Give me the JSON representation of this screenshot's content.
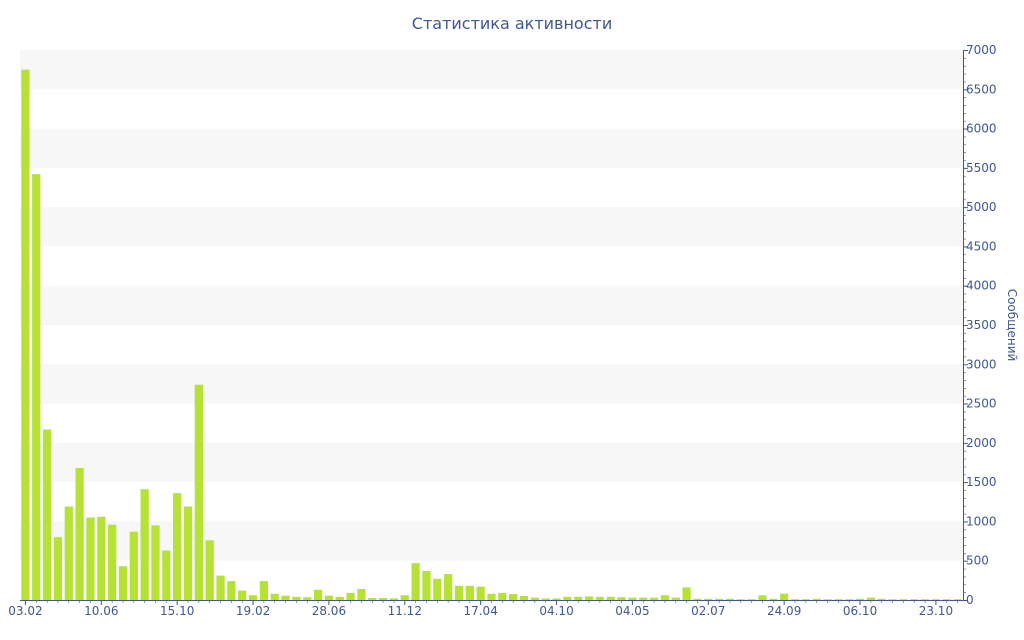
{
  "chart_data": {
    "type": "bar",
    "title": "Статистика активности",
    "ylabel": "Сообщений",
    "xlabel": "",
    "ylim": [
      0,
      7000
    ],
    "y_ticks": [
      0,
      500,
      1000,
      1500,
      2000,
      2500,
      3000,
      3500,
      4000,
      4500,
      5000,
      5500,
      6000,
      6500,
      7000
    ],
    "y_axis_position": "right",
    "grid": "alternating horizontal bands",
    "x_tick_labels": [
      {
        "index": 0,
        "label": "03.02"
      },
      {
        "index": 7,
        "label": "10.06"
      },
      {
        "index": 14,
        "label": "15.10"
      },
      {
        "index": 21,
        "label": "19.02"
      },
      {
        "index": 28,
        "label": "28.06"
      },
      {
        "index": 35,
        "label": "11.12"
      },
      {
        "index": 42,
        "label": "17.04"
      },
      {
        "index": 49,
        "label": "04.10"
      },
      {
        "index": 56,
        "label": "04.05"
      },
      {
        "index": 63,
        "label": "02.07"
      },
      {
        "index": 70,
        "label": "24.09"
      },
      {
        "index": 77,
        "label": "06.10"
      },
      {
        "index": 84,
        "label": "23.10"
      }
    ],
    "values": [
      6750,
      5420,
      2170,
      800,
      1190,
      1680,
      1050,
      1060,
      960,
      430,
      870,
      1410,
      950,
      630,
      1360,
      1190,
      2740,
      760,
      310,
      240,
      120,
      60,
      240,
      80,
      55,
      40,
      35,
      130,
      55,
      40,
      90,
      140,
      25,
      25,
      20,
      60,
      470,
      370,
      270,
      330,
      180,
      180,
      170,
      80,
      90,
      75,
      50,
      30,
      20,
      20,
      40,
      40,
      45,
      40,
      40,
      35,
      30,
      30,
      30,
      60,
      30,
      160,
      15,
      15,
      15,
      15,
      10,
      10,
      60,
      15,
      80,
      10,
      10,
      15,
      10,
      10,
      10,
      15,
      30,
      15,
      10,
      10,
      10,
      10,
      10,
      10,
      10
    ],
    "colors": {
      "bar": "#b5e235",
      "band": "#f7f7f7",
      "axis": "#3f5891",
      "text": "#3f5891"
    }
  }
}
